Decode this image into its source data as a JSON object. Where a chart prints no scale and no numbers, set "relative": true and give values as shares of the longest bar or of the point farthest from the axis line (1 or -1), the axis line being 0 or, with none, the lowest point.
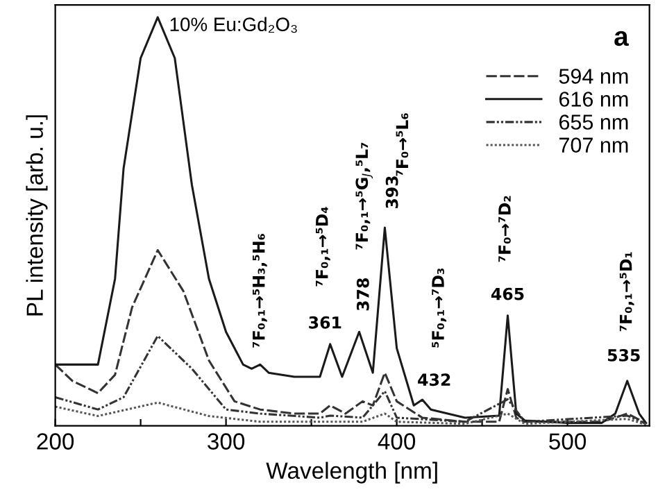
{
  "chart_data": {
    "type": "line",
    "relative": true,
    "title": "10% Eu:Gd₂O₃",
    "xlabel": "Wavelength [nm]",
    "ylabel": "PL intensity [arb. u.]",
    "xlim": [
      200,
      548
    ],
    "xticks": [
      200,
      {
        "value": 250,
        "label": null
      },
      300,
      {
        "value": 350,
        "label": null
      },
      400,
      {
        "value": 450,
        "label": null
      },
      500
    ],
    "legend": "top right",
    "series": [
      {
        "name": "594 nm",
        "color": "#333333",
        "line_style": "dashed",
        "x": [
          200,
          210,
          225,
          235,
          245,
          260,
          275,
          290,
          305,
          320,
          340,
          355,
          361,
          370,
          380,
          386,
          393,
          400,
          415,
          440,
          460,
          465,
          470,
          475,
          520,
          528,
          535,
          542,
          546
        ],
        "values": [
          0.15,
          0.11,
          0.08,
          0.125,
          0.29,
          0.43,
          0.33,
          0.16,
          0.06,
          0.04,
          0.03,
          0.03,
          0.05,
          0.03,
          0.06,
          0.05,
          0.13,
          0.06,
          0.02,
          0.01,
          0.01,
          0.09,
          0.02,
          0.01,
          0.01,
          0.02,
          0.03,
          0.015,
          0.005
        ]
      },
      {
        "name": "616 nm",
        "color": "#1a1a1a",
        "line_style": "solid",
        "x": [
          200,
          225,
          235,
          240,
          250,
          260,
          270,
          280,
          290,
          300,
          310,
          315,
          320,
          325,
          340,
          355,
          361,
          368,
          378,
          386,
          393,
          400,
          410,
          415,
          420,
          440,
          460,
          465,
          470,
          475,
          500,
          520,
          528,
          535,
          542,
          546
        ],
        "values": [
          0.15,
          0.15,
          0.36,
          0.63,
          0.9,
          1.0,
          0.9,
          0.59,
          0.36,
          0.23,
          0.15,
          0.14,
          0.15,
          0.13,
          0.12,
          0.12,
          0.2,
          0.12,
          0.23,
          0.13,
          0.485,
          0.19,
          0.05,
          0.064,
          0.04,
          0.02,
          0.025,
          0.27,
          0.03,
          0.013,
          0.007,
          0.007,
          0.03,
          0.11,
          0.03,
          0.007
        ]
      },
      {
        "name": "655 nm",
        "color": "#333333",
        "line_style": "dashdot",
        "x": [
          200,
          225,
          240,
          260,
          280,
          300,
          320,
          355,
          361,
          380,
          393,
          400,
          440,
          465,
          475,
          535,
          546
        ],
        "values": [
          0.07,
          0.04,
          0.07,
          0.22,
          0.14,
          0.04,
          0.03,
          0.02,
          0.025,
          0.02,
          0.085,
          0.02,
          0.01,
          0.065,
          0.01,
          0.025,
          0.005
        ]
      },
      {
        "name": "707 nm",
        "color": "#555555",
        "line_style": "dotted",
        "x": [
          200,
          225,
          260,
          290,
          320,
          380,
          393,
          400,
          440,
          465,
          475,
          535,
          546
        ],
        "values": [
          0.047,
          0.024,
          0.057,
          0.024,
          0.01,
          0.01,
          0.03,
          0.01,
          0.005,
          0.03,
          0.005,
          0.017,
          0.003
        ]
      }
    ],
    "annotations": [
      "⁷F₀,₁→⁵H₃,⁵H₆",
      "⁷F₀,₁→⁵D₄",
      "⁷F₀,₁→⁵G$_{J}$,⁵L₇",
      "⁷F₀→⁵L₆",
      "⁵F₀,₁→⁷D₃",
      "⁷F₀→⁷D₂",
      "⁷F₀,₁→⁵D₁",
      "361",
      "378",
      "393",
      "432",
      "465",
      "535",
      "a"
    ]
  }
}
